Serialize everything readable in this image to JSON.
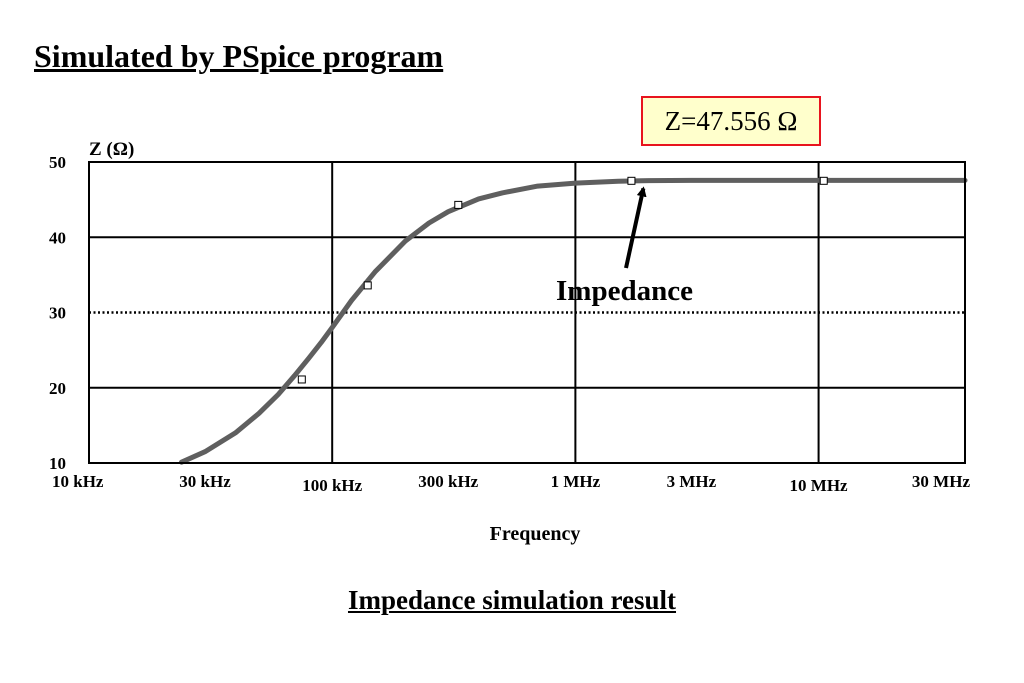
{
  "header": {
    "title": "Simulated by PSpice program"
  },
  "annotation_box": {
    "text": "Z=47.556 Ω"
  },
  "caption": "Impedance simulation result",
  "chart_data": {
    "type": "line",
    "title": "",
    "xlabel": "Frequency",
    "ylabel": "Z (Ω)",
    "x_scale": "log",
    "xlim_hz": [
      10000,
      40000000
    ],
    "ylim": [
      10,
      50
    ],
    "y_ticks": [
      10,
      20,
      30,
      40,
      50
    ],
    "y_tick_labels": [
      "10",
      "20",
      "30",
      "40",
      "50"
    ],
    "x_ticks_hz": [
      10000,
      30000,
      100000,
      300000,
      1000000,
      3000000,
      10000000,
      30000000
    ],
    "x_tick_labels": [
      "10 kHz",
      "30 kHz",
      "100 kHz",
      "300 kHz",
      "1 MHz",
      "3 MHz",
      "10 MHz",
      "30 MHz"
    ],
    "gridlines_solid_y": [
      20,
      40
    ],
    "gridlines_dotted_y": [
      30
    ],
    "gridlines_x_hz": [
      100000,
      1000000,
      10000000
    ],
    "grid": true,
    "series": [
      {
        "name": "",
        "color": "#5f5f5f",
        "x": [
          24000,
          30000,
          40000,
          50000,
          60000,
          70000,
          80000,
          90000,
          100000,
          120000,
          150000,
          200000,
          250000,
          300000,
          400000,
          500000,
          700000,
          1000000,
          1500000,
          2000000,
          3000000,
          5000000,
          10000000,
          20000000,
          40000000
        ],
        "y": [
          10.1,
          11.5,
          14.0,
          16.6,
          19.1,
          21.6,
          23.9,
          26.0,
          28.0,
          31.6,
          35.4,
          39.5,
          41.9,
          43.4,
          45.1,
          45.9,
          46.8,
          47.2,
          47.45,
          47.53,
          47.55,
          47.556,
          47.556,
          47.556,
          47.556
        ]
      }
    ],
    "markers": {
      "x": [
        75000,
        140000,
        330000,
        1700000,
        10500000
      ],
      "y": [
        21.1,
        33.6,
        44.3,
        47.5,
        47.5
      ]
    },
    "annotations": [
      {
        "text": "Impedance",
        "points_to_hz": 1850000,
        "points_to_z": 47.556
      }
    ]
  }
}
